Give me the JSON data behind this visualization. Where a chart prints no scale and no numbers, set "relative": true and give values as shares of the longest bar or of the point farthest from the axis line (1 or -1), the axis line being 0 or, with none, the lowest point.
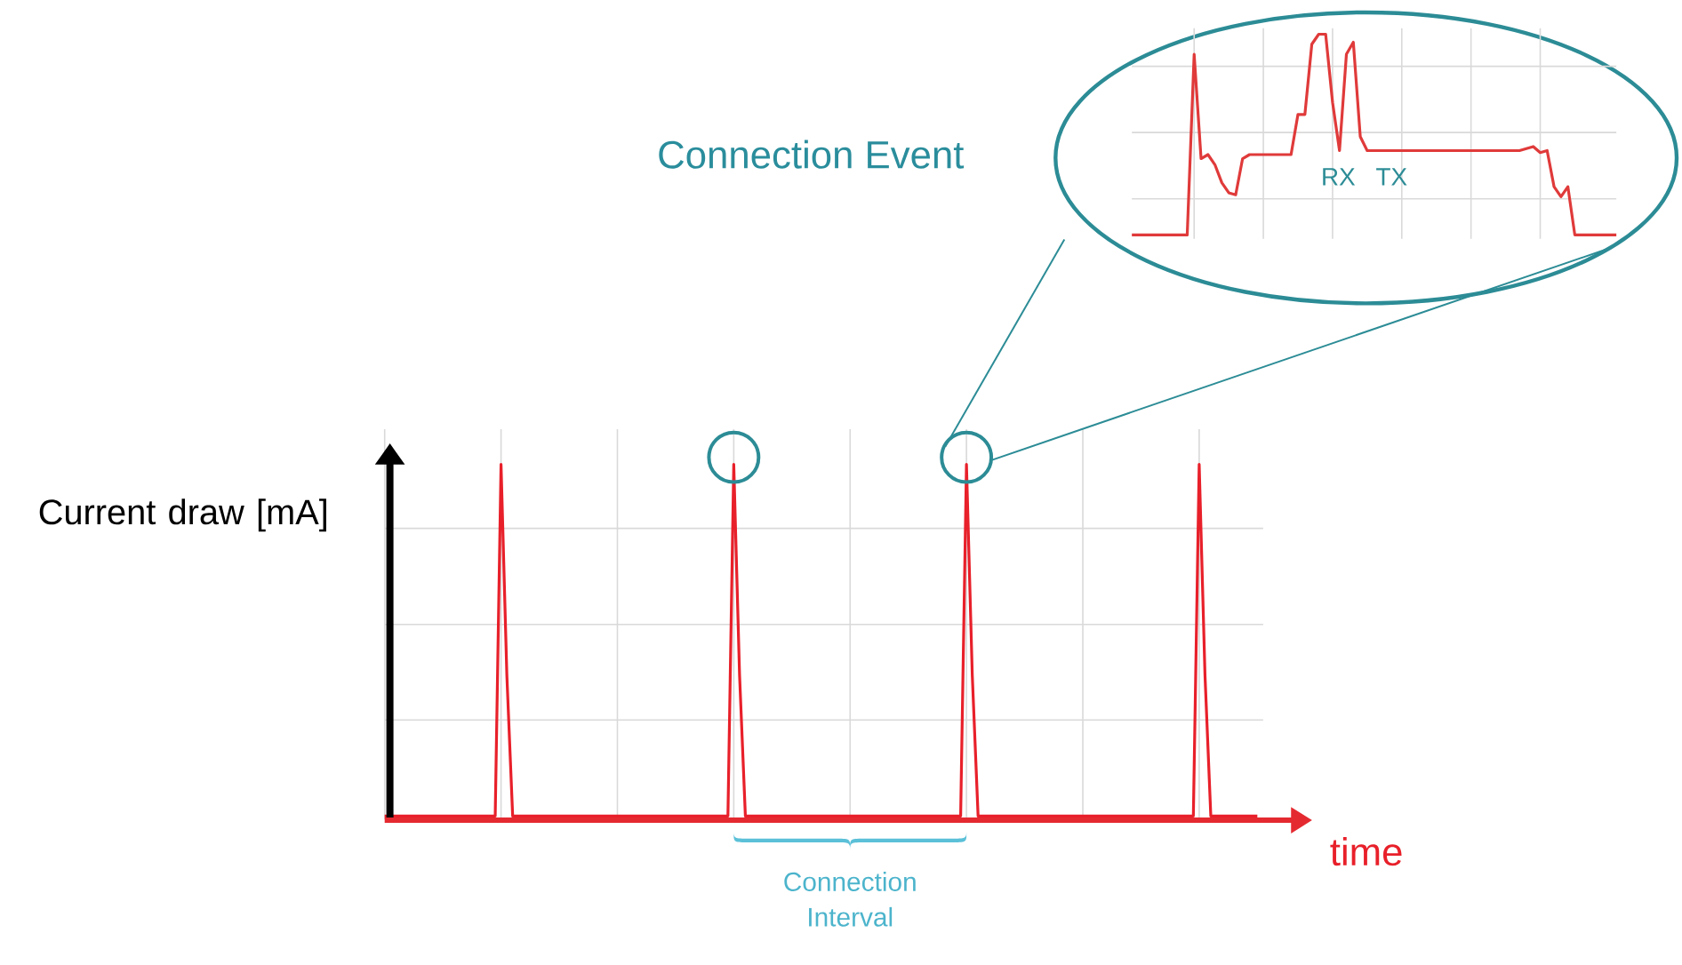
{
  "chart_data": [
    {
      "type": "line",
      "relative": true,
      "xlabel": "time",
      "ylabel": "Current draw [mA]",
      "categories": [
        null,
        null,
        null,
        null,
        null,
        null,
        null,
        null,
        null,
        null,
        null,
        null,
        null,
        null,
        null,
        null,
        null,
        null,
        null,
        null,
        null,
        null,
        null,
        null,
        null,
        null,
        null,
        null,
        null,
        null,
        null,
        null,
        null,
        null,
        null,
        null,
        null,
        null,
        null,
        null,
        null,
        null,
        null,
        null,
        null,
        null,
        null,
        null,
        null,
        null,
        null,
        null,
        null,
        null,
        null,
        null,
        null,
        null,
        null,
        null,
        null,
        null,
        null,
        null,
        null,
        null,
        null,
        null,
        null,
        null,
        null,
        null,
        null,
        null,
        null,
        null,
        null,
        null,
        null,
        null,
        null,
        null,
        null,
        null,
        null,
        null,
        null,
        null,
        null,
        null,
        null,
        null,
        null,
        null,
        null,
        null,
        null,
        null,
        null,
        null,
        null,
        null,
        null,
        null,
        null,
        null,
        null,
        null,
        null,
        null,
        null,
        null,
        null,
        null,
        null,
        null,
        null,
        null,
        null,
        null,
        null,
        null,
        null,
        null,
        null,
        null,
        null,
        null,
        null,
        null,
        null,
        null,
        null,
        null,
        null,
        null,
        null,
        null,
        null,
        null,
        null,
        null,
        null,
        null,
        null,
        null,
        null,
        null,
        null,
        null,
        null
      ],
      "values": [
        0,
        0,
        0,
        0,
        0,
        0,
        0,
        0,
        0,
        0,
        0,
        0,
        0,
        0,
        0,
        0,
        0,
        0,
        0,
        0,
        1,
        0.4,
        0,
        0,
        0,
        0,
        0,
        0,
        0,
        0,
        0,
        0,
        0,
        0,
        0,
        0,
        0,
        0,
        0,
        0,
        0,
        0,
        0,
        0,
        0,
        0,
        0,
        0,
        0,
        0,
        0,
        0,
        0,
        0,
        0,
        0,
        0,
        0,
        0,
        0,
        1,
        0.4,
        0,
        0,
        0,
        0,
        0,
        0,
        0,
        0,
        0,
        0,
        0,
        0,
        0,
        0,
        0,
        0,
        0,
        0,
        0,
        0,
        0,
        0,
        0,
        0,
        0,
        0,
        0,
        0,
        0,
        0,
        0,
        0,
        0,
        0,
        0,
        0,
        0,
        0,
        1,
        0.4,
        0,
        0,
        0,
        0,
        0,
        0,
        0,
        0,
        0,
        0,
        0,
        0,
        0,
        0,
        0,
        0,
        0,
        0,
        0,
        0,
        0,
        0,
        0,
        0,
        0,
        0,
        0,
        0,
        0,
        0,
        0,
        0,
        0,
        0,
        0,
        0,
        0,
        0,
        1,
        0.4,
        0,
        0,
        0,
        0,
        0,
        0,
        0,
        0,
        0
      ],
      "color": "#e8202a",
      "grid": true,
      "annotations": [
        "Connection Interval"
      ]
    },
    {
      "type": "line",
      "relative": true,
      "title": "Connection Event",
      "categories": [
        null,
        null,
        null,
        null,
        null,
        null,
        null,
        null,
        null,
        null,
        null,
        null,
        null,
        null,
        null,
        null,
        null,
        null,
        null,
        null,
        null,
        null,
        null,
        null,
        null,
        null,
        null,
        null,
        null,
        null,
        null,
        null,
        null,
        null,
        null,
        null,
        null,
        null,
        null,
        null,
        null,
        null,
        null,
        null,
        null,
        null,
        null,
        null,
        null,
        null,
        null,
        null,
        null,
        null,
        null,
        null,
        null,
        null,
        null,
        null,
        null,
        null,
        null,
        null,
        null,
        null,
        null,
        null,
        null,
        null,
        null
      ],
      "values": [
        0,
        0,
        0,
        0,
        0,
        0,
        0,
        0,
        0,
        0.9,
        0.38,
        0.4,
        0.35,
        0.26,
        0.21,
        0.2,
        0.38,
        0.4,
        0.4,
        0.4,
        0.4,
        0.4,
        0.4,
        0.4,
        0.6,
        0.6,
        0.95,
        1.0,
        1.0,
        0.66,
        0.42,
        0.9,
        0.96,
        0.49,
        0.42,
        0.42,
        0.42,
        0.42,
        0.42,
        0.42,
        0.42,
        0.42,
        0.42,
        0.42,
        0.42,
        0.42,
        0.42,
        0.42,
        0.42,
        0.42,
        0.42,
        0.42,
        0.42,
        0.42,
        0.42,
        0.42,
        0.42,
        0.43,
        0.44,
        0.41,
        0.42,
        0.24,
        0.19,
        0.24,
        0,
        0,
        0,
        0,
        0,
        0,
        0
      ],
      "color": "#e03a3a",
      "grid": true,
      "annotations": [
        "RX",
        "TX"
      ]
    }
  ]
}
